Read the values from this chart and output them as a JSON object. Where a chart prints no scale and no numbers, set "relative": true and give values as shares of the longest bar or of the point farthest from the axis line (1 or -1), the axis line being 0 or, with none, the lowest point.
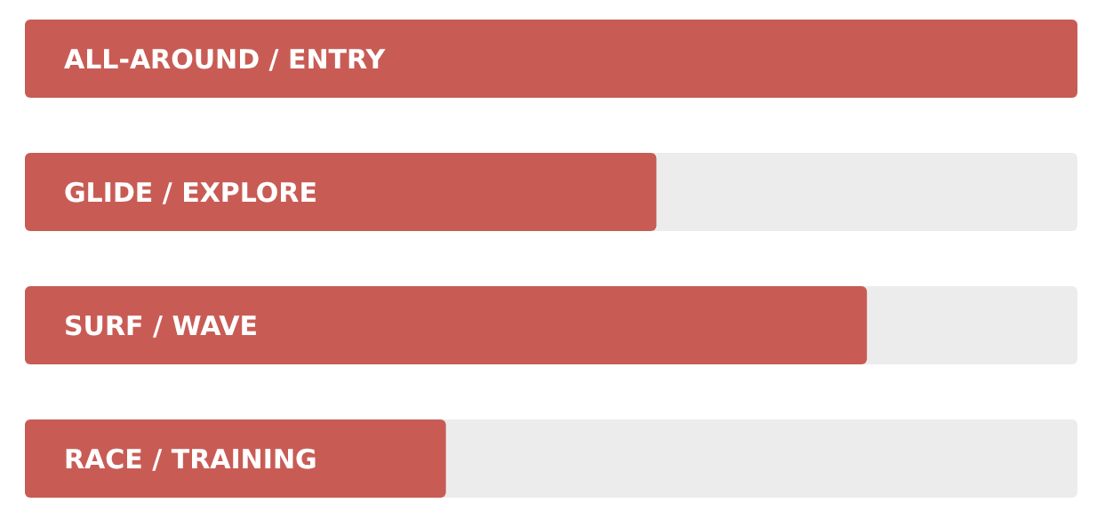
{
  "chart_data": {
    "type": "bar",
    "orientation": "horizontal",
    "relative": true,
    "categories": [
      "ALL-AROUND / ENTRY",
      "GLIDE / EXPLORE",
      "SURF / WAVE",
      "RACE / TRAINING"
    ],
    "values": [
      1,
      0.6,
      0.8,
      0.4
    ],
    "color": "#c85c55"
  }
}
